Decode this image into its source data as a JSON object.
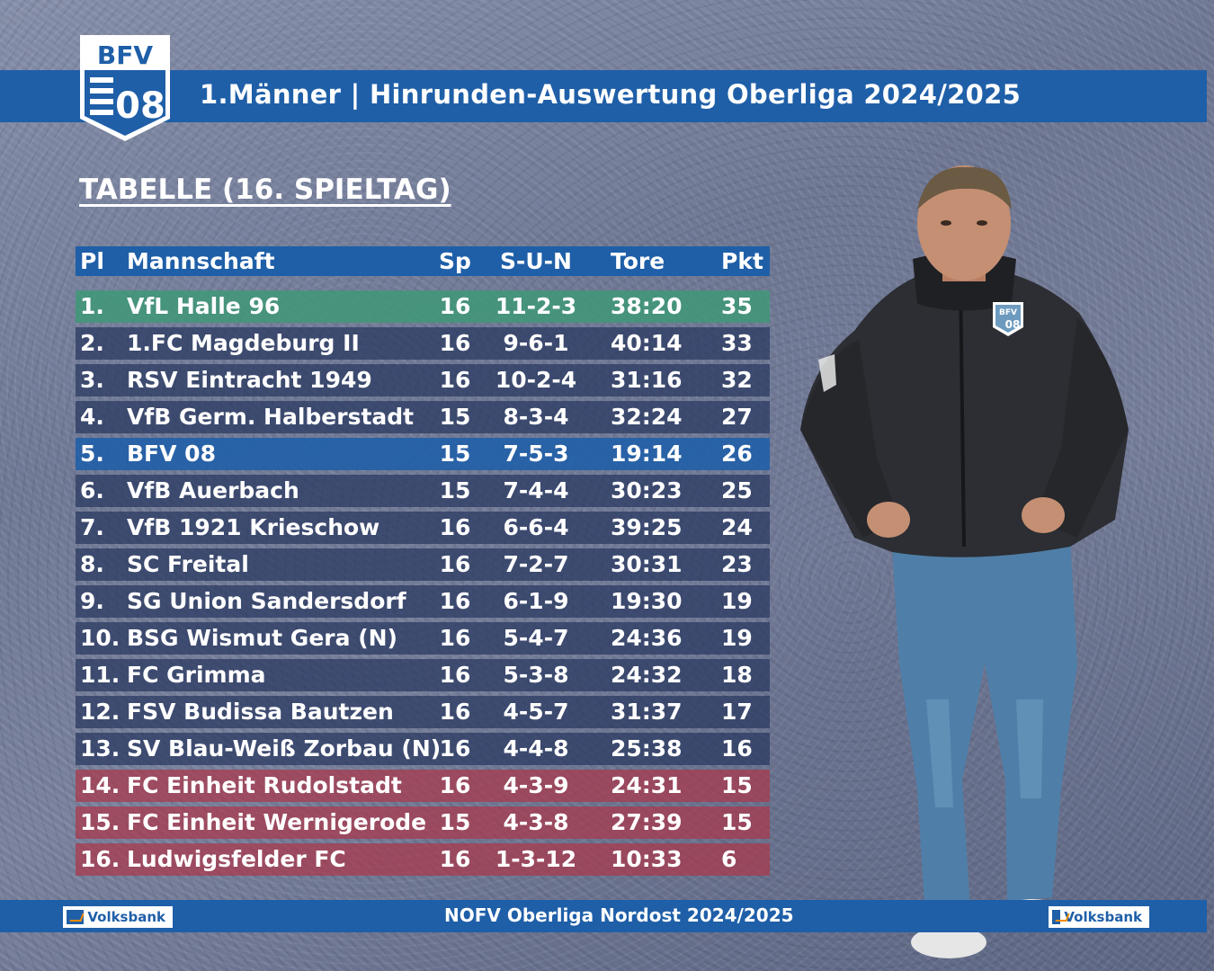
{
  "header": {
    "logo_text_top": "BFV",
    "logo_text_bottom": "08",
    "title": "1.Männer | Hinrunden-Auswertung Oberliga 2024/2025"
  },
  "section_title": "TABELLE (16. SPIELTAG)",
  "table": {
    "columns": [
      "Pl",
      "Mannschaft",
      "Sp",
      "S-U-N",
      "Tore",
      "Pkt"
    ],
    "rows": [
      {
        "pl": "1.",
        "team": "VfL Halle 96",
        "sp": "16",
        "sun": "11-2-3",
        "tore": "38:20",
        "pkt": "35",
        "highlight": "green"
      },
      {
        "pl": "2.",
        "team": "1.FC Magdeburg II",
        "sp": "16",
        "sun": "9-6-1",
        "tore": "40:14",
        "pkt": "33",
        "highlight": ""
      },
      {
        "pl": "3.",
        "team": "RSV Eintracht 1949",
        "sp": "16",
        "sun": "10-2-4",
        "tore": "31:16",
        "pkt": "32",
        "highlight": ""
      },
      {
        "pl": "4.",
        "team": "VfB Germ. Halberstadt",
        "sp": "15",
        "sun": "8-3-4",
        "tore": "32:24",
        "pkt": "27",
        "highlight": ""
      },
      {
        "pl": "5.",
        "team": "BFV 08",
        "sp": "15",
        "sun": "7-5-3",
        "tore": "19:14",
        "pkt": "26",
        "highlight": "blue"
      },
      {
        "pl": "6.",
        "team": "VfB Auerbach",
        "sp": "15",
        "sun": "7-4-4",
        "tore": "30:23",
        "pkt": "25",
        "highlight": ""
      },
      {
        "pl": "7.",
        "team": "VfB 1921 Krieschow",
        "sp": "16",
        "sun": "6-6-4",
        "tore": "39:25",
        "pkt": "24",
        "highlight": ""
      },
      {
        "pl": "8.",
        "team": "SC Freital",
        "sp": "16",
        "sun": "7-2-7",
        "tore": "30:31",
        "pkt": "23",
        "highlight": ""
      },
      {
        "pl": "9.",
        "team": "SG Union Sandersdorf",
        "sp": "16",
        "sun": "6-1-9",
        "tore": "19:30",
        "pkt": "19",
        "highlight": ""
      },
      {
        "pl": "10.",
        "team": "BSG Wismut Gera (N)",
        "sp": "16",
        "sun": "5-4-7",
        "tore": "24:36",
        "pkt": "19",
        "highlight": ""
      },
      {
        "pl": "11.",
        "team": "FC Grimma",
        "sp": "16",
        "sun": "5-3-8",
        "tore": "24:32",
        "pkt": "18",
        "highlight": ""
      },
      {
        "pl": "12.",
        "team": "FSV Budissa Bautzen",
        "sp": "16",
        "sun": "4-5-7",
        "tore": "31:37",
        "pkt": "17",
        "highlight": ""
      },
      {
        "pl": "13.",
        "team": "SV Blau-Weiß Zorbau (N)",
        "sp": "16",
        "sun": "4-4-8",
        "tore": "25:38",
        "pkt": "16",
        "highlight": ""
      },
      {
        "pl": "14.",
        "team": "FC Einheit Rudolstadt",
        "sp": "16",
        "sun": "4-3-9",
        "tore": "24:31",
        "pkt": "15",
        "highlight": "red"
      },
      {
        "pl": "15.",
        "team": "FC Einheit Wernigerode",
        "sp": "15",
        "sun": "4-3-8",
        "tore": "27:39",
        "pkt": "15",
        "highlight": "red"
      },
      {
        "pl": "16.",
        "team": "Ludwigsfelder FC",
        "sp": "16",
        "sun": "1-3-12",
        "tore": "10:33",
        "pkt": "6",
        "highlight": "red"
      }
    ]
  },
  "footer": {
    "title": "NOFV Oberliga Nordost 2024/2025",
    "sponsor_left": "Volksbank",
    "sponsor_right": "Volksbank"
  },
  "colors": {
    "brand_blue": "#1f5fa8",
    "highlight_green": "#409878",
    "highlight_red": "#aa374b"
  },
  "photo": {
    "jacket_badge_top": "BFV",
    "jacket_badge_bottom": "08"
  }
}
